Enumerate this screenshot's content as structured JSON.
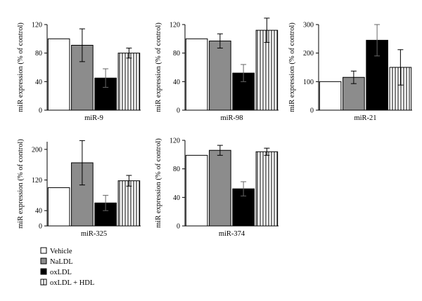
{
  "legend": {
    "items": [
      {
        "label": "Vehicle",
        "fill": "white"
      },
      {
        "label": "NaLDL",
        "fill": "gray"
      },
      {
        "label": "oxLDL",
        "fill": "black"
      },
      {
        "label": "oxLDL + HDL",
        "fill": "stripes"
      }
    ]
  },
  "colors": {
    "white": "#ffffff",
    "gray": "#8c8c8c",
    "black": "#000000",
    "stripe": "#000000"
  },
  "chart_data": [
    {
      "type": "bar",
      "xlabel": "miR-9",
      "ylabel": "miR expression (% of control)",
      "categories": [
        "Vehicle",
        "NaLDL",
        "oxLDL",
        "oxLDL + HDL"
      ],
      "values": [
        100,
        91,
        45,
        80
      ],
      "errors": [
        0,
        23,
        13,
        7
      ],
      "ylim": [
        0,
        120
      ],
      "yticks": [
        0,
        40,
        80,
        120
      ]
    },
    {
      "type": "bar",
      "xlabel": "miR-98",
      "ylabel": "miR expression (% of control)",
      "categories": [
        "Vehicle",
        "NaLDL",
        "oxLDL",
        "oxLDL + HDL"
      ],
      "values": [
        100,
        97,
        52,
        112
      ],
      "errors": [
        0,
        10,
        12,
        17
      ],
      "ylim": [
        0,
        120
      ],
      "yticks": [
        0,
        40,
        80,
        120
      ]
    },
    {
      "type": "bar",
      "xlabel": "miR-21",
      "ylabel": "miR expression (% of control)",
      "categories": [
        "Vehicle",
        "NaLDL",
        "oxLDL",
        "oxLDL + HDL"
      ],
      "values": [
        100,
        115,
        245,
        150
      ],
      "errors": [
        0,
        22,
        55,
        62
      ],
      "ylim": [
        0,
        300
      ],
      "yticks": [
        0,
        100,
        200,
        300
      ]
    },
    {
      "type": "bar",
      "xlabel": "miR-325",
      "ylabel": "miR expression (% of control)",
      "categories": [
        "Vehicle",
        "NaLDL",
        "oxLDL",
        "oxLDL + HDL"
      ],
      "values": [
        100,
        165,
        60,
        118
      ],
      "errors": [
        0,
        58,
        20,
        14
      ],
      "ylim": [
        0,
        220
      ],
      "yticks": [
        0,
        40,
        120,
        200
      ]
    },
    {
      "type": "bar",
      "xlabel": "miR-374",
      "ylabel": "miR expression (% of control)",
      "categories": [
        "Vehicle",
        "NaLDL",
        "oxLDL",
        "oxLDL + HDL"
      ],
      "values": [
        99,
        106,
        52,
        104
      ],
      "errors": [
        0,
        7,
        10,
        5
      ],
      "ylim": [
        0,
        120
      ],
      "yticks": [
        0,
        40,
        80,
        120
      ]
    }
  ]
}
